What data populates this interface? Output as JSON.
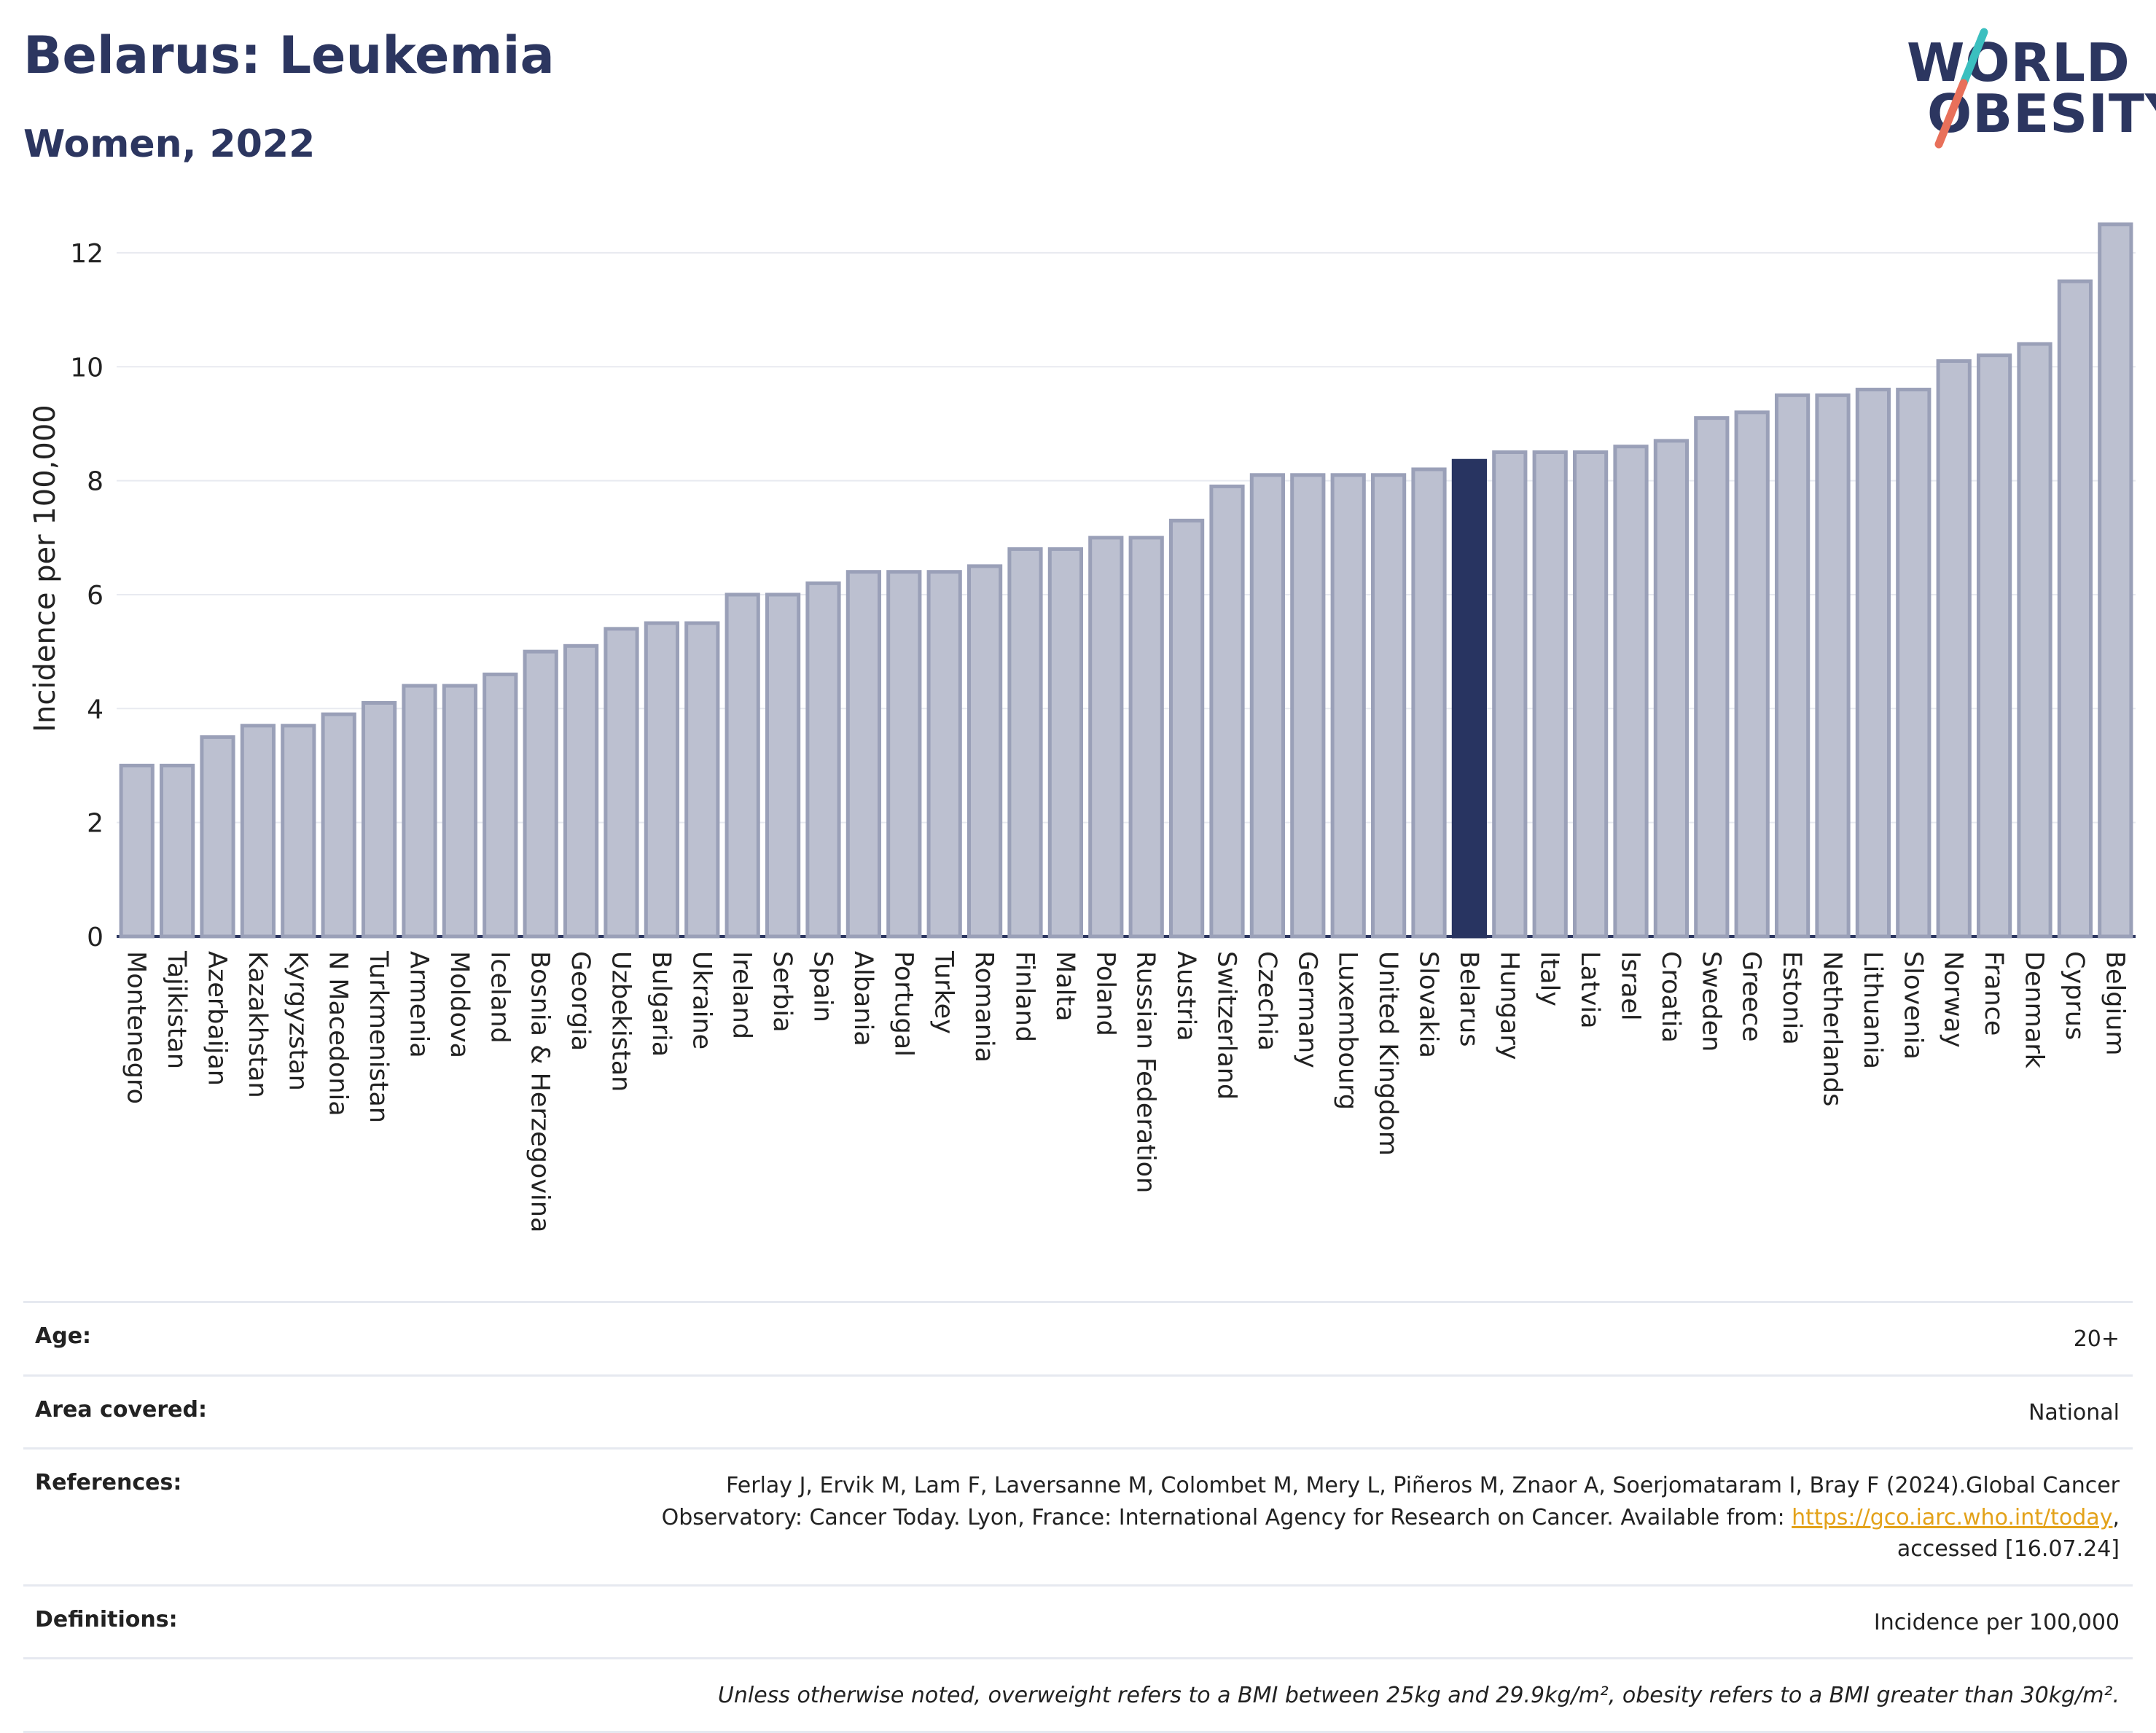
{
  "header": {
    "title": "Belarus: Leukemia",
    "subtitle": "Women, 2022",
    "logo_line1": "WORLD",
    "logo_line2": "OBESITY"
  },
  "colors": {
    "title": "#2c3660",
    "bar": "#bcc0d0",
    "bar_border": "#9aa0b8",
    "highlight": "#283461",
    "grid": "#e8eaf0",
    "logo_slash_teal": "#3bbfbf",
    "logo_slash_coral": "#e8705a",
    "link": "#e3a21a"
  },
  "chart_data": {
    "type": "bar",
    "title": "Belarus: Leukemia",
    "subtitle": "Women, 2022",
    "xlabel": "",
    "ylabel": "Incidence per 100,000",
    "ylim": [
      0,
      12.6
    ],
    "yticks": [
      0,
      2,
      4,
      6,
      8,
      10,
      12
    ],
    "grid": true,
    "highlight": "Belarus",
    "categories": [
      "Montenegro",
      "Tajikistan",
      "Azerbaijan",
      "Kazakhstan",
      "Kyrgyzstan",
      "N Macedonia",
      "Turkmenistan",
      "Armenia",
      "Moldova",
      "Iceland",
      "Bosnia & Herzegovina",
      "Georgia",
      "Uzbekistan",
      "Bulgaria",
      "Ukraine",
      "Ireland",
      "Serbia",
      "Spain",
      "Albania",
      "Portugal",
      "Turkey",
      "Romania",
      "Finland",
      "Malta",
      "Poland",
      "Russian Federation",
      "Austria",
      "Switzerland",
      "Czechia",
      "Germany",
      "Luxembourg",
      "United Kingdom",
      "Slovakia",
      "Belarus",
      "Hungary",
      "Italy",
      "Latvia",
      "Israel",
      "Croatia",
      "Sweden",
      "Greece",
      "Estonia",
      "Netherlands",
      "Lithuania",
      "Slovenia",
      "Norway",
      "France",
      "Denmark",
      "Cyprus",
      "Belgium"
    ],
    "values": [
      3.0,
      3.0,
      3.5,
      3.7,
      3.7,
      3.9,
      4.1,
      4.4,
      4.4,
      4.6,
      5.0,
      5.1,
      5.4,
      5.5,
      5.5,
      6.0,
      6.0,
      6.2,
      6.4,
      6.4,
      6.4,
      6.5,
      6.8,
      6.8,
      7.0,
      7.0,
      7.3,
      7.9,
      8.1,
      8.1,
      8.1,
      8.1,
      8.2,
      8.35,
      8.5,
      8.5,
      8.5,
      8.6,
      8.7,
      9.1,
      9.2,
      9.5,
      9.5,
      9.6,
      9.6,
      10.1,
      10.2,
      10.4,
      11.5,
      12.5
    ]
  },
  "info": {
    "age_label": "Age:",
    "age_value": "20+",
    "area_label": "Area covered:",
    "area_value": "National",
    "references_label": "References:",
    "references_text": "Ferlay J, Ervik M, Lam F, Laversanne M, Colombet M, Mery L, Piñeros M, Znaor A, Soerjomataram I, Bray F (2024).Global Cancer Observatory: Cancer Today. Lyon, France: International Agency for Research on Cancer. Available from:",
    "references_link": "https://gco.iarc.who.int/today",
    "references_tail": ", accessed [16.07.24]",
    "definitions_label": "Definitions:",
    "definitions_value": "Incidence per 100,000",
    "note": "Unless otherwise noted, overweight refers to a BMI between 25kg and 29.9kg/m², obesity refers to a BMI greater than 30kg/m²."
  }
}
